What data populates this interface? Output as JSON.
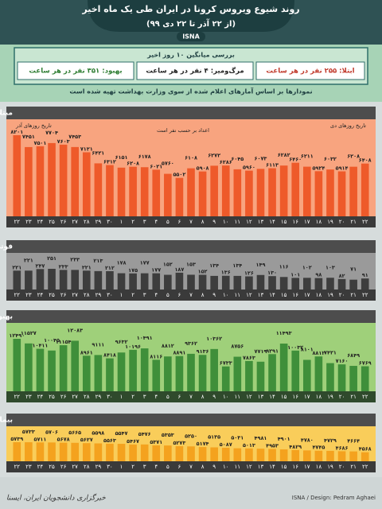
{
  "header": {
    "title": "روند شیوع ویروس کرونا در ایران طی یک ماه اخیر",
    "subtitle": "(از ۲۲ آذر تا ۲۲ دی ۹۹)",
    "agency": "ISNA"
  },
  "summary": {
    "title": "بررسی میانگین ۱۰ روز اخیر",
    "infection": "ابتلا: ۲۵۵ نفر در هر ساعت",
    "death": "مرگ‌ومیر: ۴ نفر در هر ساعت",
    "recovery": "بهبود: ۳۵۱ نفر در هر ساعت",
    "note": "نمودارها بر اساس آمارهای اعلام شده از سوی وزارت بهداشت تهیه شده است"
  },
  "chart_data": [
    {
      "type": "bar",
      "title": "مبتلایان",
      "annotations": [
        "تاریخ روزهای آذر",
        "تاریخ روزهای دی",
        "اعداد بر حسب نفر است"
      ],
      "color": "#ee5a2a",
      "categories": [
        "۲۲",
        "۲۳",
        "۲۴",
        "۲۵",
        "۲۶",
        "۲۷",
        "۲۸",
        "۲۹",
        "۳۰",
        "۱",
        "۲",
        "۳",
        "۴",
        "۵",
        "۶",
        "۷",
        "۸",
        "۹",
        "۱۰",
        "۱۱",
        "۱۲",
        "۱۳",
        "۱۴",
        "۱۵",
        "۱۶",
        "۱۷",
        "۱۸",
        "۱۹",
        "۲۰",
        "۲۱",
        "۲۲"
      ],
      "values": [
        8201,
        7451,
        7501,
        7704,
        7603,
        7453,
        7121,
        6421,
        6312,
        6151,
        6208,
        6178,
        6021,
        5760,
        5502,
        6108,
        5908,
        6272,
        6286,
        6045,
        5960,
        6073,
        6113,
        6282,
        6460,
        6211,
        5924,
        6032,
        5914,
        6208,
        6408
      ],
      "value_labels": [
        "۸۲۰۱",
        "۷۴۵۱",
        "۷۵۰۱",
        "۷۷۰۴",
        "۷۶۰۳",
        "۷۴۵۳",
        "۷۱۲۱",
        "۶۴۲۱",
        "۶۳۱۲",
        "۶۱۵۱",
        "۶۲۰۸",
        "۶۱۷۸",
        "۶۰۲۱",
        "۵۷۶۰",
        "۵۵۰۲",
        "۶۱۰۸",
        "۵۹۰۸",
        "۶۲۷۲",
        "۶۲۸۶",
        "۶۰۴۵",
        "۵۹۶۰",
        "۶۰۷۳",
        "۶۱۱۳",
        "۶۲۸۲",
        "۶۴۶۰",
        "۶۲۱۱",
        "۵۹۲۴",
        "۶۰۳۲",
        "۵۹۱۴",
        "۶۲۰۸",
        "۶۴۰۸"
      ]
    },
    {
      "type": "bar",
      "title": "فوتی‌ها",
      "color": "#3d3d3d",
      "categories": [
        "۲۲",
        "۲۳",
        "۲۴",
        "۲۵",
        "۲۶",
        "۲۷",
        "۲۸",
        "۲۹",
        "۳۰",
        "۱",
        "۲",
        "۳",
        "۴",
        "۵",
        "۶",
        "۷",
        "۸",
        "۹",
        "۱۰",
        "۱۱",
        "۱۲",
        "۱۳",
        "۱۴",
        "۱۵",
        "۱۶",
        "۱۷",
        "۱۸",
        "۱۹",
        "۲۰",
        "۲۱",
        "۲۲"
      ],
      "values": [
        221,
        221,
        247,
        251,
        233,
        233,
        221,
        213,
        212,
        178,
        175,
        177,
        177,
        152,
        187,
        153,
        152,
        134,
        136,
        134,
        126,
        149,
        130,
        116,
        101,
        102,
        98,
        103,
        82,
        71,
        91
      ],
      "value_labels": [
        "۲۲۱",
        "۲۲۱",
        "۲۴۷",
        "۲۵۱",
        "۲۳۳",
        "۲۳۳",
        "۲۲۱",
        "۲۱۳",
        "۲۱۲",
        "۱۷۸",
        "۱۷۵",
        "۱۷۷",
        "۱۷۷",
        "۱۵۲",
        "۱۸۷",
        "۱۵۳",
        "۱۵۲",
        "۱۳۴",
        "۱۳۶",
        "۱۳۴",
        "۱۲۶",
        "۱۴۹",
        "۱۳۰",
        "۱۱۶",
        "۱۰۱",
        "۱۰۲",
        "۹۸",
        "۱۰۳",
        "۸۲",
        "۷۱",
        "۹۱"
      ]
    },
    {
      "type": "bar",
      "title": "بهبودیافته‌ها",
      "color": "#3f8f3a",
      "categories": [
        "۲۲",
        "۲۳",
        "۲۴",
        "۲۵",
        "۲۶",
        "۲۷",
        "۲۸",
        "۲۹",
        "۳۰",
        "۱",
        "۲",
        "۳",
        "۴",
        "۵",
        "۶",
        "۷",
        "۸",
        "۹",
        "۱۰",
        "۱۱",
        "۱۲",
        "۱۳",
        "۱۴",
        "۱۵",
        "۱۶",
        "۱۷",
        "۱۸",
        "۱۹",
        "۲۰",
        "۲۱",
        "۲۲"
      ],
      "values": [
        12490,
        11527,
        10411,
        10045,
        11154,
        12083,
        8961,
        9111,
        8418,
        9632,
        10196,
        10491,
        8116,
        8812,
        8891,
        9362,
        9136,
        10362,
        6733,
        8756,
        7863,
        7719,
        9291,
        11493,
        10032,
        8101,
        8812,
        7421,
        7160,
        6849,
        6769
      ],
      "value_labels": [
        "۱۲۴۹۰",
        "۱۱۵۲۷",
        "۱۰۴۱۱",
        "۱۰۰۴۵",
        "۱۱۱۵۴",
        "۱۲۰۸۳",
        "۸۹۶۱",
        "۹۱۱۱",
        "۸۴۱۸",
        "۹۶۳۲",
        "۱۰۱۹۶",
        "۱۰۴۹۱",
        "۸۱۱۶",
        "۸۸۱۲",
        "۸۸۹۱",
        "۹۳۶۲",
        "۹۱۳۶",
        "۱۰۳۶۲",
        "۶۷۳۳",
        "۸۷۵۶",
        "۷۸۶۳",
        "۷۷۱۹",
        "۹۲۹۱",
        "۱۱۴۹۳",
        "۱۰۰۳۲",
        "۸۱۰۱",
        "۸۸۱۲",
        "۷۴۲۱",
        "۷۱۶۰",
        "۶۸۴۹",
        "۶۷۶۹"
      ]
    },
    {
      "type": "bar",
      "title": "بیماران با وضعیت حاد",
      "color": "#f4a21e",
      "categories": [
        "۲۲",
        "۲۳",
        "۲۴",
        "۲۵",
        "۲۶",
        "۲۷",
        "۲۸",
        "۲۹",
        "۳۰",
        "۱",
        "۲",
        "۳",
        "۴",
        "۵",
        "۶",
        "۷",
        "۸",
        "۹",
        "۱۰",
        "۱۱",
        "۱۲",
        "۱۳",
        "۱۴",
        "۱۵",
        "۱۶",
        "۱۷",
        "۱۸",
        "۱۹",
        "۲۰",
        "۲۱",
        "۲۲"
      ],
      "values": [
        5739,
        5733,
        5711,
        5706,
        5678,
        5665,
        5627,
        5598,
        5563,
        5547,
        5467,
        5476,
        5371,
        5353,
        5273,
        5250,
        5174,
        5135,
        5087,
        5031,
        5013,
        4981,
        4953,
        4901,
        4829,
        4780,
        4745,
        4729,
        4686,
        4664,
        4568
      ],
      "value_labels": [
        "۵۷۳۹",
        "۵۷۳۳",
        "۵۷۱۱",
        "۵۷۰۶",
        "۵۶۷۸",
        "۵۶۶۵",
        "۵۶۲۷",
        "۵۵۹۸",
        "۵۵۶۳",
        "۵۵۴۷",
        "۵۴۶۷",
        "۵۴۷۶",
        "۵۳۷۱",
        "۵۳۵۳",
        "۵۲۷۳",
        "۵۲۵۰",
        "۵۱۷۴",
        "۵۱۳۵",
        "۵۰۸۷",
        "۵۰۳۱",
        "۵۰۱۳",
        "۴۹۸۱",
        "۴۹۵۳",
        "۴۹۰۱",
        "۴۸۲۹",
        "۴۷۸۰",
        "۴۷۴۵",
        "۴۷۲۹",
        "۴۶۸۶",
        "۴۶۶۴",
        "۴۵۶۸"
      ]
    }
  ],
  "footer": {
    "credit": "ISNA / Design: Pedram Aghaei",
    "agency": "خبرگزاری دانشجویان ایران، ایسنا"
  }
}
